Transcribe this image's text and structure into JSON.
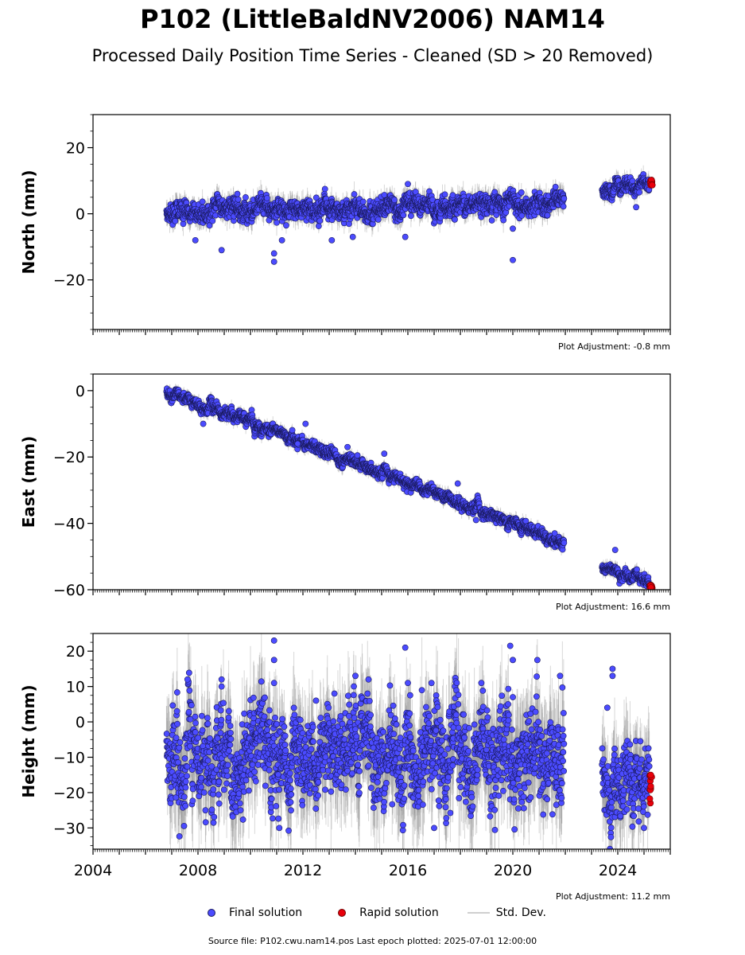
{
  "title": "P102 (LittleBaldNV2006) NAM14",
  "subtitle": "Processed Daily Position Time Series - Cleaned (SD > 20 Removed)",
  "colors": {
    "final": "#4b4bff",
    "final_edge": "#1a1a5e",
    "rapid": "#e8000b",
    "std_dev": "#8c8c8c"
  },
  "legend": {
    "final": "Final solution",
    "rapid": "Rapid solution",
    "std_dev": "Std. Dev."
  },
  "footer": "Source file: P102.cwu.nam14.pos  Last epoch plotted: 2025-07-01 12:00:00",
  "chart_data": [
    {
      "type": "scatter",
      "ylabel": "North (mm)",
      "adjustment": "Plot Adjustment: -0.8 mm",
      "xlim": [
        2004.0,
        2026.0
      ],
      "ylim": [
        -35,
        30
      ],
      "yticks": [
        20,
        0,
        -20
      ],
      "segments": [
        {
          "from": 2006.8,
          "to": 2021.95,
          "y_start": 0.0,
          "y_end": 3.5,
          "noise": 1.6
        },
        {
          "from": 2023.4,
          "to": 2025.2,
          "y_start": 7.5,
          "y_end": 9.0,
          "noise": 1.2
        }
      ],
      "outliers": [
        {
          "x": 2007.9,
          "y": -8
        },
        {
          "x": 2008.9,
          "y": -11
        },
        {
          "x": 2009.5,
          "y": 6
        },
        {
          "x": 2010.9,
          "y": -14.5
        },
        {
          "x": 2010.9,
          "y": -12
        },
        {
          "x": 2011.2,
          "y": -8
        },
        {
          "x": 2013.1,
          "y": -8
        },
        {
          "x": 2013.9,
          "y": -7
        },
        {
          "x": 2016.0,
          "y": 9
        },
        {
          "x": 2015.9,
          "y": -7
        },
        {
          "x": 2019.2,
          "y": -2
        },
        {
          "x": 2020.0,
          "y": -14
        },
        {
          "x": 2020.0,
          "y": -4.5
        },
        {
          "x": 2024.7,
          "y": 2
        }
      ],
      "rapid": {
        "from": 2025.22,
        "to": 2025.32,
        "y_min": 8.5,
        "y_max": 10.5
      }
    },
    {
      "type": "scatter",
      "ylabel": "East (mm)",
      "adjustment": "Plot Adjustment: 16.6 mm",
      "xlim": [
        2004.0,
        2026.0
      ],
      "ylim": [
        -60,
        5
      ],
      "yticks": [
        0,
        -20,
        -40,
        -60
      ],
      "segments": [
        {
          "from": 2006.8,
          "to": 2021.95,
          "y_start": 0.0,
          "y_end": -46.0,
          "noise": 0.9
        },
        {
          "from": 2023.4,
          "to": 2025.2,
          "y_start": -53.0,
          "y_end": -58.0,
          "noise": 0.9
        }
      ],
      "outliers": [
        {
          "x": 2008.2,
          "y": -10
        },
        {
          "x": 2011.8,
          "y": -16
        },
        {
          "x": 2012.1,
          "y": -10
        },
        {
          "x": 2013.7,
          "y": -17
        },
        {
          "x": 2015.1,
          "y": -19
        },
        {
          "x": 2017.9,
          "y": -28
        },
        {
          "x": 2018.6,
          "y": -39
        },
        {
          "x": 2023.9,
          "y": -48
        }
      ],
      "rapid": {
        "from": 2025.22,
        "to": 2025.32,
        "y_min": -59.5,
        "y_max": -58.5
      }
    },
    {
      "type": "scatter",
      "ylabel": "Height (mm)",
      "adjustment": "Plot Adjustment: 11.2 mm",
      "xlim": [
        2004.0,
        2026.0
      ],
      "ylim": [
        -36,
        25
      ],
      "yticks": [
        20,
        10,
        0,
        -10,
        -20,
        -30
      ],
      "xticks": [
        "2004",
        "2008",
        "2012",
        "2016",
        "2020",
        "2024"
      ],
      "segments": [
        {
          "from": 2006.8,
          "to": 2021.95,
          "y_start": -10.0,
          "y_end": -10.0,
          "noise": 6.5
        },
        {
          "from": 2023.4,
          "to": 2025.2,
          "y_start": -17.0,
          "y_end": -17.0,
          "noise": 6.0
        }
      ],
      "outliers": [
        {
          "x": 2007.6,
          "y": 12
        },
        {
          "x": 2008.9,
          "y": 12
        },
        {
          "x": 2008.9,
          "y": 10
        },
        {
          "x": 2010.9,
          "y": 23
        },
        {
          "x": 2010.9,
          "y": 17.5
        },
        {
          "x": 2010.9,
          "y": 11
        },
        {
          "x": 2011.1,
          "y": -30
        },
        {
          "x": 2012.5,
          "y": 6
        },
        {
          "x": 2013.2,
          "y": 8
        },
        {
          "x": 2014.0,
          "y": 13
        },
        {
          "x": 2014.5,
          "y": 12
        },
        {
          "x": 2015.9,
          "y": 21
        },
        {
          "x": 2016.0,
          "y": 11
        },
        {
          "x": 2016.9,
          "y": 11
        },
        {
          "x": 2017.0,
          "y": -30
        },
        {
          "x": 2018.8,
          "y": 11
        },
        {
          "x": 2019.9,
          "y": 21.5
        },
        {
          "x": 2020.0,
          "y": 17.5
        },
        {
          "x": 2020.0,
          "y": 7
        },
        {
          "x": 2021.8,
          "y": 13
        },
        {
          "x": 2023.8,
          "y": 15
        },
        {
          "x": 2023.8,
          "y": 13
        },
        {
          "x": 2023.6,
          "y": 4
        },
        {
          "x": 2025.0,
          "y": -30
        }
      ],
      "rapid": {
        "from": 2025.22,
        "to": 2025.32,
        "y_min": -23,
        "y_max": -15
      }
    }
  ]
}
